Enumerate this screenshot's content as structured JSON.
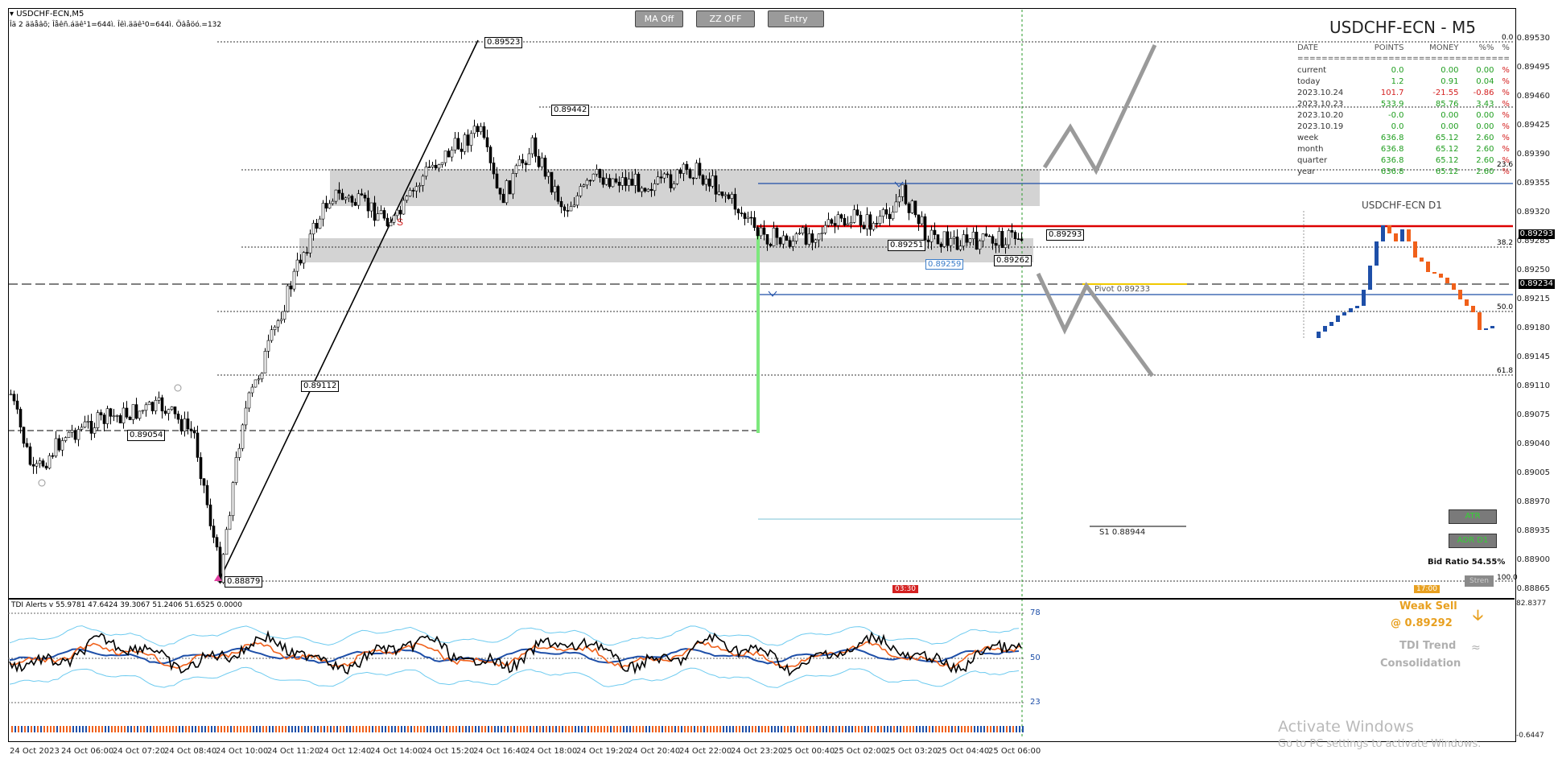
{
  "chart": {
    "symbol_header": "USDCHF-ECN,M5",
    "info_line": "Îä 2 ääåâõ; Îåêñ.áäê¹1=644ì. Îêì.ääê¹0=644ì. Öâåöó.=132",
    "buttons": [
      "MA Off",
      "ZZ OFF",
      "Entry"
    ],
    "price_axis": [
      "0.89530",
      "0.89495",
      "0.89460",
      "0.89425",
      "0.89390",
      "0.89355",
      "0.89320",
      "0.89285",
      "0.89250",
      "0.89215",
      "0.89180",
      "0.89145",
      "0.89110",
      "0.89075",
      "0.89040",
      "0.89005",
      "0.88970",
      "0.88935",
      "0.88900",
      "0.88865"
    ],
    "current_price_tag": "0.89293",
    "pivot_price_tag": "0.89234",
    "time_axis": [
      "24 Oct 2023",
      "24 Oct 06:00",
      "24 Oct 07:20",
      "24 Oct 08:40",
      "24 Oct 10:00",
      "24 Oct 11:20",
      "24 Oct 12:40",
      "24 Oct 14:00",
      "24 Oct 15:20",
      "24 Oct 16:40",
      "24 Oct 18:00",
      "24 Oct 19:20",
      "24 Oct 20:40",
      "24 Oct 22:00",
      "24 Oct 23:20",
      "25 Oct 00:40",
      "25 Oct 02:00",
      "25 Oct 03:20",
      "25 Oct 04:40",
      "25 Oct 06:00"
    ],
    "level_labels": {
      "high": "0.89523",
      "mid_high": "0.89442",
      "lower_a": "0.89112",
      "left_level": "0.89054",
      "low": "0.88879",
      "cur_line": "0.89293",
      "l1": "0.89251",
      "l2": "0.89259",
      "l3": "0.89262",
      "pivot": "Pivot 0.89233",
      "s1": "S1 0.88944"
    },
    "signal_letter": "S",
    "fib_labels": [
      "0.0",
      "23.6",
      "38.2",
      "50.0",
      "61.8",
      "100.0"
    ],
    "time_badges": [
      "03:30",
      "17:00"
    ]
  },
  "stats": {
    "title": "USDCHF-ECN - M5",
    "columns": [
      "DATE",
      "POINTS",
      "MONEY",
      "%%",
      "%"
    ],
    "separator": "===================================",
    "rows": [
      {
        "date": "current",
        "points": "0.0",
        "money": "0.00",
        "pct": "0.00",
        "unit": "%",
        "color": "g"
      },
      {
        "date": "today",
        "points": "1.2",
        "money": "0.91",
        "pct": "0.04",
        "unit": "%",
        "color": "g"
      },
      {
        "date": "2023.10.24",
        "points": "101.7",
        "money": "-21.55",
        "pct": "-0.86",
        "unit": "%",
        "color": "r"
      },
      {
        "date": "2023.10.23",
        "points": "533.9",
        "money": "85.76",
        "pct": "3.43",
        "unit": "%",
        "color": "g"
      },
      {
        "date": "2023.10.20",
        "points": "-0.0",
        "money": "0.00",
        "pct": "0.00",
        "unit": "%",
        "color": "g"
      },
      {
        "date": "2023.10.19",
        "points": "0.0",
        "money": "0.00",
        "pct": "0.00",
        "unit": "%",
        "color": "g"
      },
      {
        "date": "week",
        "points": "636.8",
        "money": "65.12",
        "pct": "2.60",
        "unit": "%",
        "color": "g"
      },
      {
        "date": "month",
        "points": "636.8",
        "money": "65.12",
        "pct": "2.60",
        "unit": "%",
        "color": "g"
      },
      {
        "date": "quarter",
        "points": "636.8",
        "money": "65.12",
        "pct": "2.60",
        "unit": "%",
        "color": "g"
      },
      {
        "date": "year",
        "points": "636.8",
        "money": "65.12",
        "pct": "2.60",
        "unit": "%",
        "color": "g"
      }
    ]
  },
  "mini_chart": {
    "title": "USDCHF-ECN D1"
  },
  "side_panel": {
    "atr": "ATR",
    "adr": "ADR D1",
    "bid_ratio": "Bid Ratio 54.55%",
    "strength_btn": "Stren"
  },
  "indicator": {
    "header": "TDI Alerts v 55.9781 47.6424 39.3067 51.2406 51.6525 0.0000",
    "levels": [
      "78",
      "50",
      "23"
    ],
    "axis_top": "82.8377",
    "axis_bottom": "-0.6447",
    "signal_title": "Weak Sell",
    "signal_price": "@ 0.89292",
    "trend_title": "TDI Trend",
    "trend_state": "Consolidation"
  },
  "watermark": {
    "line1": "Activate Windows",
    "line2": "Go to PC settings to activate Windows."
  },
  "colors": {
    "up": "#1f9e1f",
    "down": "#d42020",
    "accent": "#e8a020",
    "blue": "#1e4fa8",
    "redline": "#dd0000"
  }
}
